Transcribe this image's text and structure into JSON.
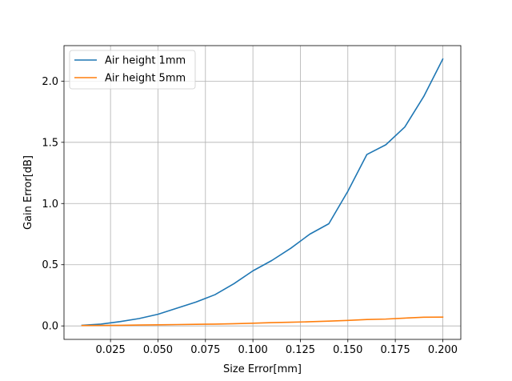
{
  "chart_data": {
    "type": "line",
    "title": "",
    "xlabel": "Size Error[mm]",
    "ylabel": "Gain Error[dB]",
    "xlim": [
      0.0005,
      0.2095
    ],
    "ylim": [
      -0.11,
      2.29
    ],
    "x_ticks": [
      0.025,
      0.05,
      0.075,
      0.1,
      0.125,
      0.15,
      0.175,
      0.2
    ],
    "x_tick_labels": [
      "0.025",
      "0.050",
      "0.075",
      "0.100",
      "0.125",
      "0.150",
      "0.175",
      "0.200"
    ],
    "y_ticks": [
      0.0,
      0.5,
      1.0,
      1.5,
      2.0
    ],
    "y_tick_labels": [
      "0.0",
      "0.5",
      "1.0",
      "1.5",
      "2.0"
    ],
    "grid": true,
    "legend_position": "top-left",
    "x": [
      0.01,
      0.02,
      0.03,
      0.04,
      0.05,
      0.06,
      0.07,
      0.08,
      0.09,
      0.1,
      0.11,
      0.12,
      0.13,
      0.14,
      0.15,
      0.16,
      0.17,
      0.18,
      0.19,
      0.2
    ],
    "series": [
      {
        "name": "Air height 1mm",
        "color": "#1f77b4",
        "values": [
          0.005,
          0.015,
          0.035,
          0.06,
          0.095,
          0.145,
          0.195,
          0.255,
          0.345,
          0.45,
          0.535,
          0.635,
          0.75,
          0.835,
          1.1,
          1.4,
          1.48,
          1.625,
          1.875,
          2.18
        ]
      },
      {
        "name": "Air height 5mm",
        "color": "#ff7f0e",
        "values": [
          0.003,
          0.004,
          0.005,
          0.007,
          0.009,
          0.011,
          0.013,
          0.015,
          0.018,
          0.022,
          0.027,
          0.03,
          0.034,
          0.039,
          0.045,
          0.052,
          0.056,
          0.064,
          0.071,
          0.072
        ]
      }
    ]
  }
}
